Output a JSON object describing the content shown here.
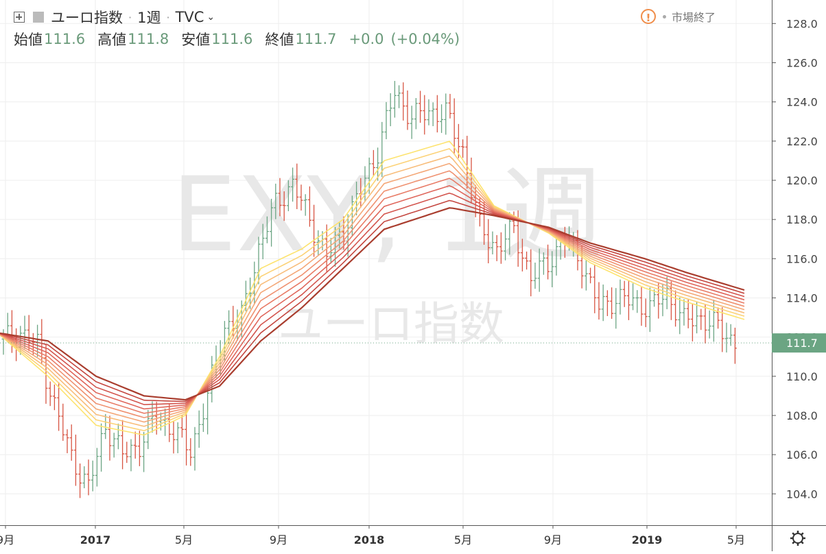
{
  "header": {
    "symbol": "ユーロ指数",
    "interval": "1週",
    "exchange": "TVC",
    "status": "市場終了",
    "open_label": "始値",
    "open": "111.6",
    "high_label": "高値",
    "high": "111.8",
    "low_label": "安値",
    "low": "111.6",
    "close_label": "終値",
    "close": "111.7",
    "change": "+0.0",
    "change_pct": "(+0.04%)"
  },
  "watermark": {
    "line1": "EXY, 1週",
    "line2": "ユーロ指数"
  },
  "colors": {
    "up": "#6ba583",
    "down": "#d75442",
    "ribbon": [
      "#fde36e",
      "#fcd276",
      "#f8bd7a",
      "#f4a777",
      "#ef9170",
      "#e87b66",
      "#df665b",
      "#d3544d",
      "#c4463f",
      "#a93d2e"
    ],
    "last_price_bg": "#6ba583"
  },
  "chart_data": {
    "type": "ohlc",
    "ylim": [
      102.4,
      129.2
    ],
    "yticks": [
      "104.0",
      "106.0",
      "108.0",
      "110.0",
      "112.0",
      "114.0",
      "116.0",
      "118.0",
      "120.0",
      "122.0",
      "124.0",
      "126.0",
      "128.0"
    ],
    "xticks": [
      "9月",
      "2017",
      "5月",
      "9月",
      "2018",
      "5月",
      "9月",
      "2019",
      "5月"
    ],
    "last_price": "111.7",
    "ribbon_end": [
      112.9,
      113.3,
      113.6,
      113.9,
      114.1,
      114.4
    ]
  }
}
